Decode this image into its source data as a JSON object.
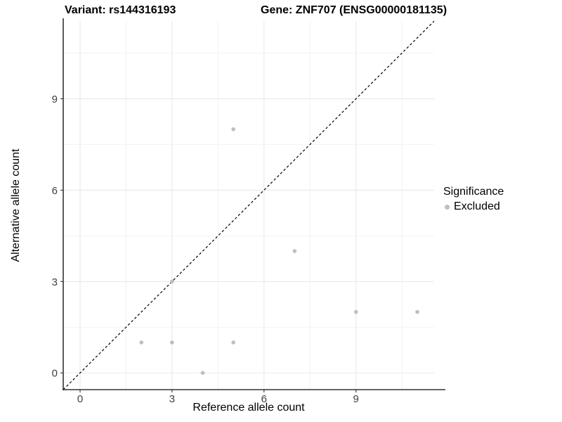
{
  "figure": {
    "title_left": "Variant: rs144316193",
    "title_right": "Gene: ZNF707 (ENSG00000181135)"
  },
  "chart_data": {
    "type": "scatter",
    "title": "Variant: rs144316193  Gene: ZNF707 (ENSG00000181135)",
    "xlabel": "Reference allele count",
    "ylabel": "Alternative allele count",
    "xlim": [
      -0.55,
      11.55
    ],
    "ylim": [
      -0.55,
      11.55
    ],
    "x_ticks": [
      0,
      3,
      6,
      9
    ],
    "y_ticks": [
      0,
      3,
      6,
      9
    ],
    "x_minor": [
      1.5,
      4.5,
      7.5,
      10.5
    ],
    "y_minor": [
      1.5,
      4.5,
      7.5,
      10.5
    ],
    "grid": true,
    "legend_position": "right",
    "identity_line": {
      "style": "dashed",
      "from": [
        -0.55,
        -0.55
      ],
      "to": [
        11.55,
        11.55
      ],
      "color": "#000000"
    },
    "series": [
      {
        "name": "Excluded",
        "color": "#bebebe",
        "points": [
          [
            2,
            1
          ],
          [
            3,
            1
          ],
          [
            3,
            3
          ],
          [
            4,
            0
          ],
          [
            5,
            1
          ],
          [
            5,
            8
          ],
          [
            7,
            4
          ],
          [
            9,
            2
          ],
          [
            11,
            2
          ]
        ]
      }
    ],
    "legend": {
      "title": "Significance",
      "entries": [
        {
          "label": "Excluded",
          "color": "#bebebe"
        }
      ]
    },
    "colors": {
      "point": "#bebebe",
      "grid_major": "#e6e6e6",
      "grid_minor": "#f2f2f2",
      "axis_line": "#333333",
      "tick_label": "#404040",
      "diagonal": "#000000"
    }
  }
}
